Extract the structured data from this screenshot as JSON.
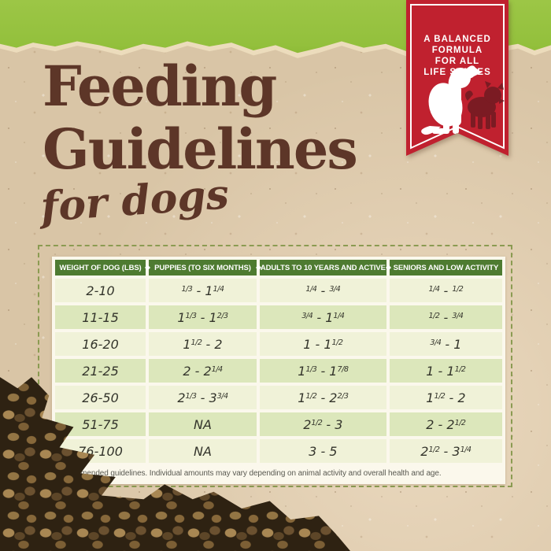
{
  "colors": {
    "paper": "#d9c5a6",
    "green_band": "#93c03c",
    "ribbon_red": "#c0212f",
    "ribbon_red_dark": "#7b1b23",
    "heading_brown": "#5d3628",
    "header_green": "#4e7b31",
    "row_light": "#f0f2d8",
    "row_dark": "#dce7bb",
    "sheet_white": "#fbf8ec",
    "dash_green": "#8b9b52"
  },
  "ribbon": {
    "lines": [
      "A BALANCED",
      "FORMULA",
      "FOR ALL",
      "LIFE STAGES"
    ]
  },
  "title": {
    "line1": "Feeding",
    "line2": "Guidelines",
    "subtitle": "for dogs"
  },
  "table": {
    "headers": [
      "WEIGHT OF DOG (LBS)",
      "PUPPIES (TO SIX MONTHS)",
      "ADULTS TO 10 YEARS AND ACTIVE",
      "SENIORS AND LOW ACTIVITY"
    ],
    "rows": [
      [
        "2-10",
        "1/3 - 1 1/4",
        "1/4 - 3/4",
        "1/4 - 1/2"
      ],
      [
        "11-15",
        "1 1/3 - 1 2/3",
        "3/4 - 1 1/4",
        "1/2 - 3/4"
      ],
      [
        "16-20",
        "1 1/2 - 2",
        "1 - 1 1/2",
        "3/4 - 1"
      ],
      [
        "21-25",
        "2 - 2 1/4",
        "1 1/3 - 1 7/8",
        "1 - 1 1/2"
      ],
      [
        "26-50",
        "2 1/3 - 3 3/4",
        "1 1/2 - 2 2/3",
        "1 1/2 - 2"
      ],
      [
        "51-75",
        "NA",
        "2 1/2 - 3",
        "2 - 2 1/2"
      ],
      [
        "76-100",
        "NA",
        "3 - 5",
        "2 1/2 - 3 1/4"
      ]
    ],
    "footnote": "Recommended guidelines. Individual amounts may vary depending on animal activity and overall health and age."
  }
}
